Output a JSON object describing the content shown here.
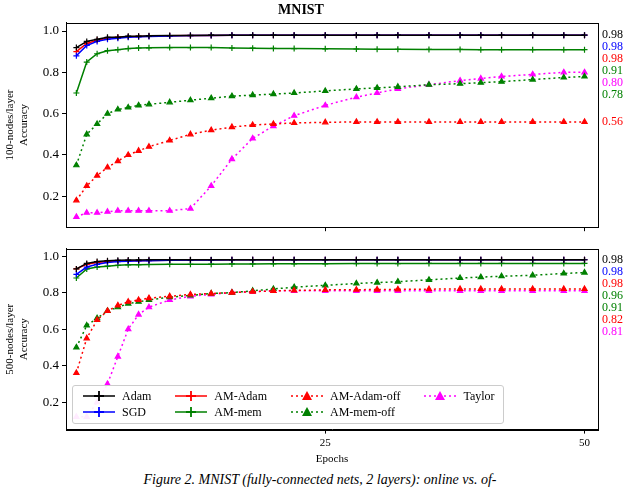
{
  "caption": "Figure 2. MNIST (fully-connected nets, 2 layers): online vs. of-",
  "chart_data": [
    {
      "type": "line",
      "title": "MNIST",
      "y_label": [
        "100-nodes/layer",
        "Accuracy"
      ],
      "xlim": [
        0,
        51.3
      ],
      "xticks": [
        25,
        50
      ],
      "ylim": [
        0.05,
        1.04
      ],
      "yticks": [
        0.2,
        0.4,
        0.6,
        0.8,
        {
          "value": 1,
          "label": "1.0"
        }
      ],
      "grid": false,
      "tick_labels": "y",
      "x": [
        1,
        2,
        3,
        4,
        5,
        6,
        7,
        8,
        10,
        12,
        14,
        16,
        18,
        20,
        22,
        25,
        28,
        30,
        32,
        35,
        38,
        40,
        42,
        45,
        48,
        50
      ],
      "series": [
        {
          "name": "Adam",
          "color": "#000000",
          "marker": "plus",
          "line_style": "solid",
          "end_label": "0.98",
          "values": [
            0.92,
            0.95,
            0.96,
            0.97,
            0.97,
            0.975,
            0.975,
            0.977,
            0.978,
            0.979,
            0.98,
            0.98,
            0.98,
            0.98,
            0.98,
            0.98,
            0.98,
            0.98,
            0.98,
            0.98,
            0.98,
            0.98,
            0.98,
            0.98,
            0.98,
            0.98
          ]
        },
        {
          "name": "SGD",
          "color": "#0000ff",
          "marker": "plus",
          "line_style": "solid",
          "end_label": "0.98",
          "values": [
            0.88,
            0.93,
            0.95,
            0.96,
            0.965,
            0.97,
            0.972,
            0.974,
            0.976,
            0.978,
            0.979,
            0.98,
            0.98,
            0.98,
            0.98,
            0.98,
            0.98,
            0.98,
            0.98,
            0.98,
            0.98,
            0.98,
            0.98,
            0.98,
            0.98,
            0.98
          ]
        },
        {
          "name": "AM-Adam",
          "color": "#ff0000",
          "marker": "plus",
          "line_style": "solid",
          "end_label": "0.98",
          "values": [
            0.9,
            0.94,
            0.955,
            0.965,
            0.97,
            0.972,
            0.974,
            0.975,
            0.977,
            0.978,
            0.979,
            0.98,
            0.98,
            0.98,
            0.98,
            0.98,
            0.98,
            0.98,
            0.98,
            0.98,
            0.98,
            0.98,
            0.98,
            0.98,
            0.98,
            0.98
          ]
        },
        {
          "name": "AM-mem",
          "color": "#008000",
          "marker": "plus",
          "line_style": "solid",
          "end_label": "0.91",
          "values": [
            0.7,
            0.85,
            0.89,
            0.905,
            0.91,
            0.915,
            0.918,
            0.919,
            0.92,
            0.92,
            0.92,
            0.918,
            0.917,
            0.916,
            0.915,
            0.914,
            0.913,
            0.912,
            0.912,
            0.911,
            0.911,
            0.91,
            0.91,
            0.91,
            0.91,
            0.91
          ]
        },
        {
          "name": "AM-Adam-off",
          "color": "#ff0000",
          "marker": "triangle",
          "line_style": "dotted",
          "end_label": "0.56",
          "values": [
            0.18,
            0.25,
            0.3,
            0.34,
            0.37,
            0.4,
            0.42,
            0.44,
            0.47,
            0.5,
            0.52,
            0.535,
            0.545,
            0.55,
            0.555,
            0.558,
            0.56,
            0.56,
            0.56,
            0.56,
            0.56,
            0.56,
            0.56,
            0.56,
            0.56,
            0.56
          ]
        },
        {
          "name": "AM-mem-off",
          "color": "#008000",
          "marker": "triangle",
          "line_style": "dotted",
          "end_label": "0.78",
          "values": [
            0.35,
            0.5,
            0.55,
            0.6,
            0.62,
            0.63,
            0.64,
            0.645,
            0.655,
            0.665,
            0.675,
            0.685,
            0.69,
            0.695,
            0.7,
            0.71,
            0.72,
            0.725,
            0.73,
            0.74,
            0.745,
            0.75,
            0.755,
            0.765,
            0.775,
            0.78
          ]
        },
        {
          "name": "Taylor",
          "color": "#ff00ff",
          "marker": "triangle",
          "line_style": "dotted",
          "end_label": "0.80",
          "values": [
            0.1,
            0.12,
            0.12,
            0.125,
            0.13,
            0.13,
            0.13,
            0.13,
            0.13,
            0.14,
            0.25,
            0.38,
            0.48,
            0.54,
            0.59,
            0.64,
            0.68,
            0.7,
            0.72,
            0.74,
            0.76,
            0.77,
            0.78,
            0.79,
            0.8,
            0.8
          ]
        }
      ]
    },
    {
      "type": "line",
      "y_label": [
        "500-nodes/layer",
        "Accuracy"
      ],
      "x_label": "Epochs",
      "xlim": [
        0,
        51.3
      ],
      "xticks": [
        25,
        50
      ],
      "ylim": [
        0.05,
        1.04
      ],
      "yticks": [
        0.2,
        0.4,
        0.6,
        0.8,
        {
          "value": 1,
          "label": "1.0"
        }
      ],
      "grid": false,
      "legend": "lower left",
      "x": [
        1,
        2,
        3,
        4,
        5,
        6,
        7,
        8,
        10,
        12,
        14,
        16,
        18,
        20,
        22,
        25,
        28,
        30,
        32,
        35,
        38,
        40,
        42,
        45,
        48,
        50
      ],
      "series": [
        {
          "name": "Adam",
          "color": "#000000",
          "marker": "plus",
          "line_style": "solid",
          "end_label": "0.98",
          "values": [
            0.93,
            0.96,
            0.97,
            0.975,
            0.977,
            0.978,
            0.979,
            0.98,
            0.98,
            0.98,
            0.98,
            0.98,
            0.98,
            0.98,
            0.98,
            0.98,
            0.98,
            0.98,
            0.98,
            0.98,
            0.98,
            0.98,
            0.98,
            0.98,
            0.98,
            0.98
          ]
        },
        {
          "name": "SGD",
          "color": "#0000ff",
          "marker": "plus",
          "line_style": "solid",
          "end_label": "0.98",
          "values": [
            0.9,
            0.94,
            0.955,
            0.965,
            0.97,
            0.972,
            0.974,
            0.975,
            0.977,
            0.978,
            0.979,
            0.98,
            0.98,
            0.98,
            0.98,
            0.98,
            0.98,
            0.98,
            0.98,
            0.98,
            0.98,
            0.98,
            0.98,
            0.98,
            0.98,
            0.98
          ]
        },
        {
          "name": "AM-Adam",
          "color": "#ff0000",
          "marker": "plus",
          "line_style": "solid",
          "end_label": "0.98",
          "values": [
            0.93,
            0.955,
            0.965,
            0.97,
            0.972,
            0.974,
            0.975,
            0.976,
            0.977,
            0.978,
            0.979,
            0.98,
            0.98,
            0.98,
            0.98,
            0.98,
            0.98,
            0.98,
            0.98,
            0.98,
            0.98,
            0.98,
            0.98,
            0.98,
            0.98,
            0.98
          ]
        },
        {
          "name": "AM-mem",
          "color": "#008000",
          "marker": "plus",
          "line_style": "solid",
          "end_label": "0.96",
          "values": [
            0.88,
            0.93,
            0.94,
            0.945,
            0.95,
            0.952,
            0.953,
            0.954,
            0.955,
            0.955,
            0.956,
            0.957,
            0.957,
            0.958,
            0.958,
            0.958,
            0.959,
            0.959,
            0.959,
            0.96,
            0.96,
            0.96,
            0.96,
            0.96,
            0.96,
            0.96
          ]
        },
        {
          "name": "AM-Adam-off",
          "color": "#ff0000",
          "marker": "triangle",
          "line_style": "dotted",
          "end_label": "0.82",
          "values": [
            0.36,
            0.55,
            0.65,
            0.7,
            0.73,
            0.75,
            0.76,
            0.77,
            0.78,
            0.79,
            0.795,
            0.8,
            0.805,
            0.81,
            0.812,
            0.815,
            0.816,
            0.817,
            0.818,
            0.819,
            0.82,
            0.82,
            0.82,
            0.82,
            0.82,
            0.82
          ]
        },
        {
          "name": "AM-mem-off",
          "color": "#008000",
          "marker": "triangle",
          "line_style": "dotted",
          "end_label": "0.91",
          "values": [
            0.5,
            0.62,
            0.66,
            0.7,
            0.72,
            0.74,
            0.75,
            0.76,
            0.775,
            0.785,
            0.795,
            0.8,
            0.81,
            0.82,
            0.83,
            0.84,
            0.85,
            0.855,
            0.86,
            0.87,
            0.88,
            0.885,
            0.89,
            0.895,
            0.905,
            0.91
          ]
        },
        {
          "name": "Taylor",
          "color": "#ff00ff",
          "marker": "triangle",
          "line_style": "dotted",
          "end_label": "0.81",
          "values": [
            0.12,
            0.12,
            0.2,
            0.3,
            0.45,
            0.6,
            0.68,
            0.72,
            0.76,
            0.78,
            0.79,
            0.8,
            0.805,
            0.81,
            0.81,
            0.81,
            0.81,
            0.81,
            0.81,
            0.81,
            0.81,
            0.81,
            0.81,
            0.81,
            0.81,
            0.81
          ]
        }
      ]
    }
  ]
}
